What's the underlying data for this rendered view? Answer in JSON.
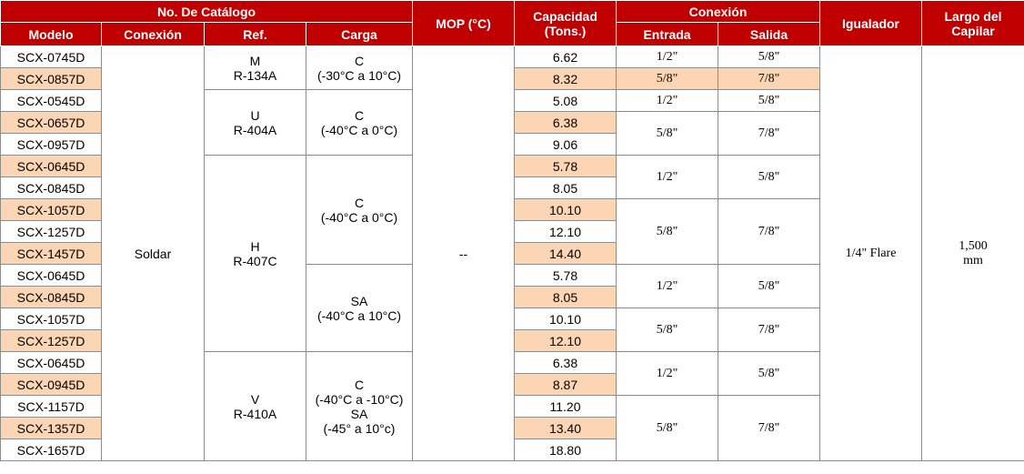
{
  "header": {
    "catalogo": "No. De Catálogo",
    "mop": "MOP (°C)",
    "capacidad": "Capacidad (Tons.)",
    "conexion_group": "Conexión",
    "igualador": "Igualador",
    "largo": "Largo del Capilar",
    "modelo": "Modelo",
    "conexion": "Conexión",
    "ref": "Ref.",
    "carga": "Carga",
    "entrada": "Entrada",
    "salida": "Salida"
  },
  "models": [
    "SCX-0745D",
    "SCX-0857D",
    "SCX-0545D",
    "SCX-0657D",
    "SCX-0957D",
    "SCX-0645D",
    "SCX-0845D",
    "SCX-1057D",
    "SCX-1257D",
    "SCX-1457D",
    "SCX-0645D",
    "SCX-0845D",
    "SCX-1057D",
    "SCX-1257D",
    "SCX-0645D",
    "SCX-0945D",
    "SCX-1157D",
    "SCX-1357D",
    "SCX-1657D"
  ],
  "capacities": [
    "6.62",
    "8.32",
    "5.08",
    "6.38",
    "9.06",
    "5.78",
    "8.05",
    "10.10",
    "12.10",
    "14.40",
    "5.78",
    "8.05",
    "10.10",
    "12.10",
    "6.38",
    "8.87",
    "11.20",
    "13.40",
    "18.80"
  ],
  "conexion_value": "Soldar",
  "refs": [
    {
      "code": "M",
      "refrigerant": "R-134A"
    },
    {
      "code": "U",
      "refrigerant": "R-404A"
    },
    {
      "code": "H",
      "refrigerant": "R-407C"
    },
    {
      "code": "V",
      "refrigerant": "R-410A"
    }
  ],
  "cargas": [
    {
      "line1": "C",
      "line2": "(-30°C a 10°C)"
    },
    {
      "line1": "C",
      "line2": "(-40°C a 0°C)"
    },
    {
      "line1": "C",
      "line2": "(-40°C a 0°C)"
    },
    {
      "line1": "SA",
      "line2": "(-40°C a 10°C)"
    },
    {
      "line1": "C",
      "line2": "(-40°C a -10°C)",
      "line3": "SA",
      "line4": "(-45° a 10°c)"
    }
  ],
  "mop_value": "--",
  "entradas": [
    "1/2\"",
    "5/8\"",
    "1/2\"",
    "5/8\"",
    "1/2\"",
    "5/8\"",
    "1/2\"",
    "5/8\"",
    "1/2\"",
    "5/8\""
  ],
  "salidas": [
    "5/8\"",
    "7/8\"",
    "5/8\"",
    "7/8\"",
    "5/8\"",
    "7/8\"",
    "5/8\"",
    "7/8\"",
    "5/8\"",
    "7/8\""
  ],
  "igualador_value": "1/4\" Flare",
  "largo_value": {
    "line1": "1,500",
    "line2": "mm"
  }
}
